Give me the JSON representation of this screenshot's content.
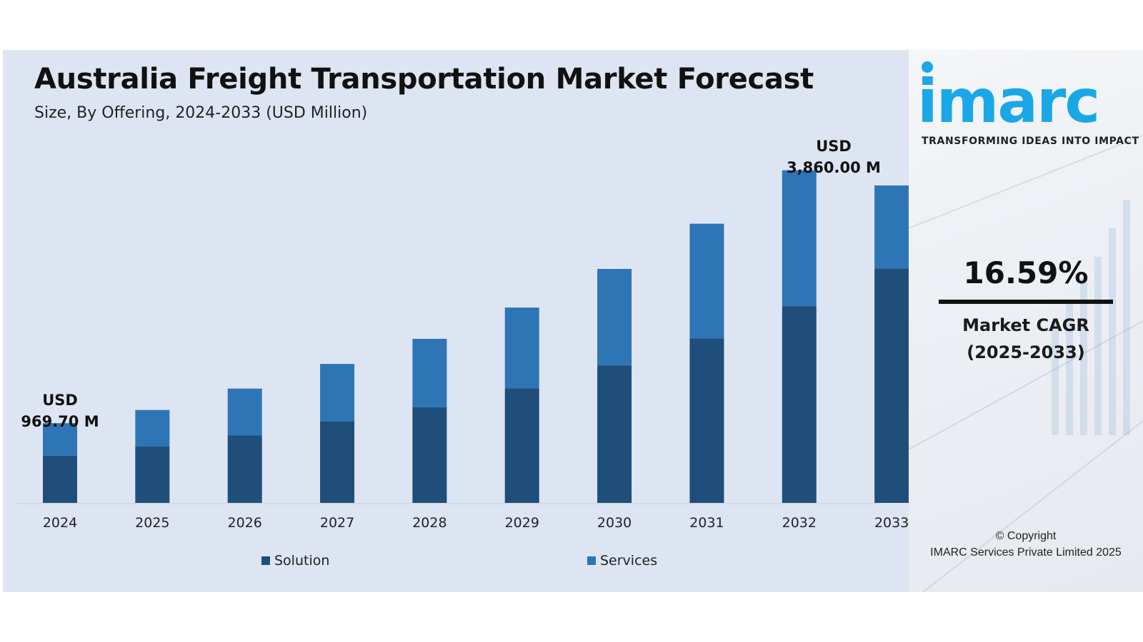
{
  "header": {
    "title": "Australia Freight Transportation Market Forecast",
    "subtitle": "Size, By Offering, 2024-2033 (USD Million)"
  },
  "callouts": {
    "first": {
      "line1": "USD",
      "line2": "969.70 M"
    },
    "last": {
      "line1": "USD",
      "line2": "3,860.00 M"
    }
  },
  "brand": {
    "logo_text": "imarc",
    "tagline": "TRANSFORMING IDEAS INTO IMPACT",
    "color": "#1aa7e8"
  },
  "cagr": {
    "value": "16.59%",
    "label": "Market CAGR",
    "period": "(2025-2033)"
  },
  "copyright": {
    "line1": "© Copyright",
    "line2": "IMARC Services Private Limited 2025"
  },
  "chart_data": {
    "type": "bar",
    "stacked": true,
    "title": "Australia Freight Transportation Market Forecast",
    "subtitle": "Size, By Offering, 2024-2033 (USD Million)",
    "categories": [
      "2024",
      "2025",
      "2026",
      "2027",
      "2028",
      "2029",
      "2030",
      "2031",
      "2032",
      "2033"
    ],
    "series": [
      {
        "name": "Solution",
        "color": "#1f4e7a",
        "values": [
          575,
          685,
          820,
          995,
          1165,
          1395,
          1670,
          2000,
          2390,
          2850
        ]
      },
      {
        "name": "Services",
        "color": "#2e75b6",
        "values": [
          394.7,
          445,
          570,
          695,
          830,
          980,
          1175,
          1395,
          1655,
          1010
        ]
      }
    ],
    "totals_labeled": {
      "2024": 969.7,
      "2033": 3860.0
    },
    "ylim": [
      0,
      4000
    ],
    "grid": false,
    "legend_position": "bottom"
  }
}
